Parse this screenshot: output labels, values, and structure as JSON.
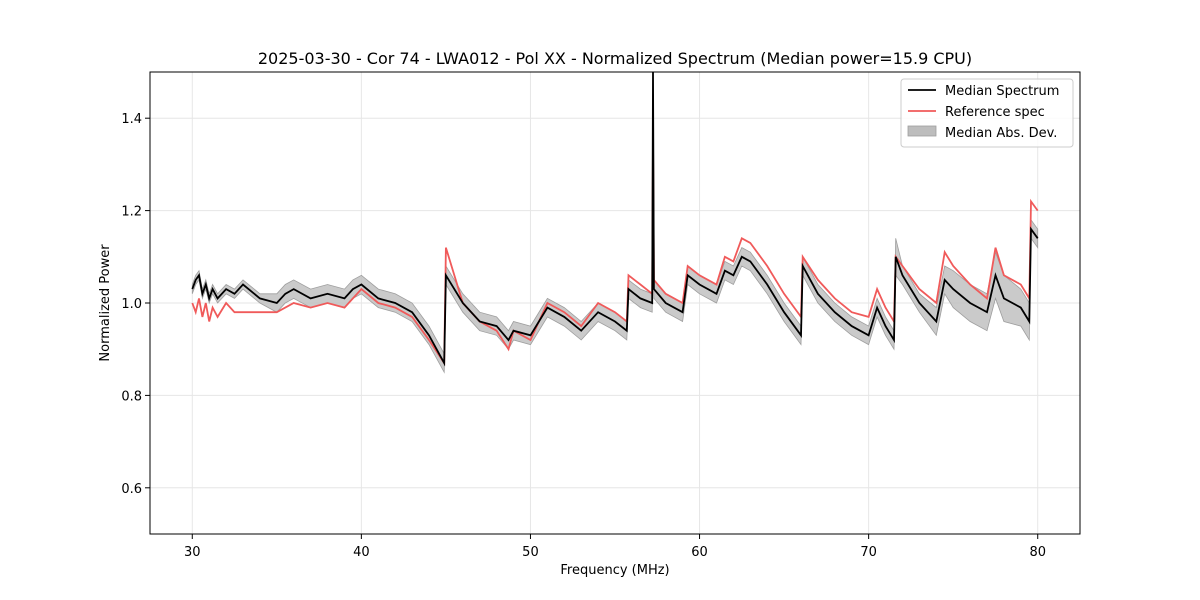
{
  "chart_data": {
    "type": "line",
    "title": "2025-03-30 - Cor 74 - LWA012 - Pol XX - Normalized Spectrum (Median power=15.9 CPU)",
    "xlabel": "Frequency (MHz)",
    "ylabel": "Normalized Power",
    "xlim": [
      27.5,
      82.5
    ],
    "ylim": [
      0.5,
      1.5
    ],
    "xticks": [
      30,
      40,
      50,
      60,
      70,
      80
    ],
    "yticks": [
      0.6,
      0.8,
      1.0,
      1.2,
      1.4
    ],
    "xtick_labels": [
      "30",
      "40",
      "50",
      "60",
      "70",
      "80"
    ],
    "ytick_labels": [
      "0.6",
      "0.8",
      "1.0",
      "1.2",
      "1.4"
    ],
    "grid": true,
    "legend_position": "top-right",
    "series": [
      {
        "name": "Median Spectrum",
        "color": "#000000",
        "x": [
          30.0,
          30.2,
          30.4,
          30.6,
          30.8,
          31.0,
          31.2,
          31.5,
          32.0,
          32.5,
          33.0,
          34.0,
          35.0,
          35.5,
          36.0,
          37.0,
          38.0,
          39.0,
          39.5,
          40.0,
          41.0,
          42.0,
          43.0,
          44.0,
          44.9,
          45.0,
          46.0,
          47.0,
          48.0,
          48.7,
          49.0,
          50.0,
          51.0,
          52.0,
          53.0,
          54.0,
          55.0,
          55.7,
          55.8,
          56.5,
          57.2,
          57.25,
          57.3,
          58.0,
          59.0,
          59.3,
          60.0,
          61.0,
          61.5,
          62.0,
          62.5,
          63.0,
          64.0,
          65.0,
          66.0,
          66.1,
          67.0,
          68.0,
          69.0,
          70.0,
          70.5,
          71.0,
          71.5,
          71.6,
          72.0,
          73.0,
          74.0,
          74.5,
          75.0,
          76.0,
          77.0,
          77.5,
          78.0,
          79.0,
          79.5,
          79.6,
          80.0
        ],
        "values": [
          1.03,
          1.05,
          1.06,
          1.02,
          1.04,
          1.01,
          1.03,
          1.01,
          1.03,
          1.02,
          1.04,
          1.01,
          1.0,
          1.02,
          1.03,
          1.01,
          1.02,
          1.01,
          1.03,
          1.04,
          1.01,
          1.0,
          0.98,
          0.93,
          0.87,
          1.06,
          1.0,
          0.96,
          0.95,
          0.92,
          0.94,
          0.93,
          0.99,
          0.97,
          0.94,
          0.98,
          0.96,
          0.94,
          1.03,
          1.01,
          1.0,
          1.5,
          1.03,
          1.0,
          0.98,
          1.06,
          1.04,
          1.02,
          1.07,
          1.06,
          1.1,
          1.09,
          1.04,
          0.98,
          0.93,
          1.08,
          1.02,
          0.98,
          0.95,
          0.93,
          0.99,
          0.95,
          0.92,
          1.1,
          1.06,
          1.0,
          0.96,
          1.05,
          1.03,
          1.0,
          0.98,
          1.06,
          1.01,
          0.99,
          0.96,
          1.16,
          1.14
        ]
      },
      {
        "name": "Reference spec",
        "color": "#f05a5a",
        "x": [
          30.0,
          30.2,
          30.4,
          30.6,
          30.8,
          31.0,
          31.2,
          31.5,
          32.0,
          32.5,
          33.0,
          34.0,
          35.0,
          35.5,
          36.0,
          37.0,
          38.0,
          39.0,
          39.5,
          40.0,
          41.0,
          42.0,
          43.0,
          44.0,
          44.9,
          45.0,
          46.0,
          47.0,
          48.0,
          48.7,
          49.0,
          50.0,
          51.0,
          52.0,
          53.0,
          54.0,
          55.0,
          55.7,
          55.8,
          56.5,
          57.2,
          57.25,
          57.3,
          58.0,
          59.0,
          59.3,
          60.0,
          61.0,
          61.5,
          62.0,
          62.5,
          63.0,
          64.0,
          65.0,
          66.0,
          66.1,
          67.0,
          68.0,
          69.0,
          70.0,
          70.5,
          71.0,
          71.5,
          71.6,
          72.0,
          73.0,
          74.0,
          74.5,
          75.0,
          76.0,
          77.0,
          77.5,
          78.0,
          79.0,
          79.5,
          79.6,
          80.0
        ],
        "values": [
          1.0,
          0.98,
          1.01,
          0.97,
          1.0,
          0.96,
          0.99,
          0.97,
          1.0,
          0.98,
          0.98,
          0.98,
          0.98,
          0.99,
          1.0,
          0.99,
          1.0,
          0.99,
          1.01,
          1.03,
          1.0,
          0.99,
          0.97,
          0.92,
          0.87,
          1.12,
          1.0,
          0.96,
          0.94,
          0.9,
          0.94,
          0.92,
          1.0,
          0.98,
          0.95,
          1.0,
          0.98,
          0.96,
          1.06,
          1.04,
          1.02,
          1.36,
          1.05,
          1.02,
          1.0,
          1.08,
          1.06,
          1.04,
          1.1,
          1.09,
          1.14,
          1.13,
          1.08,
          1.02,
          0.97,
          1.1,
          1.05,
          1.01,
          0.98,
          0.97,
          1.03,
          0.99,
          0.96,
          1.1,
          1.08,
          1.03,
          1.0,
          1.11,
          1.08,
          1.04,
          1.01,
          1.12,
          1.06,
          1.04,
          1.01,
          1.22,
          1.2
        ]
      }
    ],
    "band": {
      "name": "Median Abs. Dev.",
      "color": "#bdbdbd",
      "x": [
        30.0,
        30.2,
        30.4,
        30.6,
        30.8,
        31.0,
        31.2,
        31.5,
        32.0,
        32.5,
        33.0,
        34.0,
        35.0,
        35.5,
        36.0,
        37.0,
        38.0,
        39.0,
        39.5,
        40.0,
        41.0,
        42.0,
        43.0,
        44.0,
        44.9,
        45.0,
        46.0,
        47.0,
        48.0,
        48.7,
        49.0,
        50.0,
        51.0,
        52.0,
        53.0,
        54.0,
        55.0,
        55.7,
        55.8,
        56.5,
        57.2,
        57.25,
        57.3,
        58.0,
        59.0,
        59.3,
        60.0,
        61.0,
        61.5,
        62.0,
        62.5,
        63.0,
        64.0,
        65.0,
        66.0,
        66.1,
        67.0,
        68.0,
        69.0,
        70.0,
        70.5,
        71.0,
        71.5,
        71.6,
        72.0,
        73.0,
        74.0,
        74.5,
        75.0,
        76.0,
        77.0,
        77.5,
        78.0,
        79.0,
        79.5,
        79.6,
        80.0
      ],
      "upper": [
        1.04,
        1.06,
        1.07,
        1.03,
        1.05,
        1.02,
        1.04,
        1.02,
        1.04,
        1.03,
        1.05,
        1.02,
        1.02,
        1.04,
        1.05,
        1.03,
        1.04,
        1.03,
        1.05,
        1.06,
        1.03,
        1.02,
        1.0,
        0.95,
        0.89,
        1.08,
        1.02,
        0.98,
        0.97,
        0.94,
        0.96,
        0.95,
        1.01,
        0.99,
        0.96,
        1.0,
        0.98,
        0.96,
        1.05,
        1.03,
        1.02,
        1.52,
        1.05,
        1.02,
        1.0,
        1.08,
        1.06,
        1.04,
        1.09,
        1.08,
        1.12,
        1.11,
        1.06,
        1.0,
        0.95,
        1.1,
        1.04,
        1.0,
        0.97,
        0.95,
        1.01,
        0.97,
        0.94,
        1.14,
        1.08,
        1.02,
        0.99,
        1.08,
        1.07,
        1.04,
        1.02,
        1.11,
        1.06,
        1.03,
        1.0,
        1.18,
        1.16
      ]
    }
  }
}
